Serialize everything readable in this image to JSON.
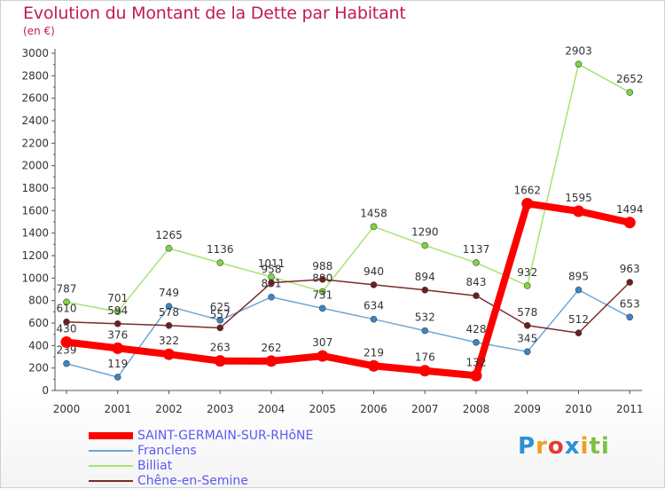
{
  "title": "Evolution du Montant de la Dette par Habitant",
  "subtitle": "(en €)",
  "logo": "Proxiti",
  "chart_data": {
    "type": "line",
    "title": "Evolution du Montant de la Dette par Habitant",
    "subtitle": "(en €)",
    "xlabel": "",
    "ylabel": "",
    "categories": [
      "2000",
      "2001",
      "2002",
      "2003",
      "2004",
      "2005",
      "2006",
      "2007",
      "2008",
      "2009",
      "2010",
      "2011"
    ],
    "yticks": [
      0,
      200,
      400,
      600,
      800,
      1000,
      1200,
      1400,
      1600,
      1800,
      2000,
      2200,
      2400,
      2600,
      2800,
      3000
    ],
    "ylim": [
      0,
      3000
    ],
    "grid": false,
    "legend_position": "bottom-left",
    "series": [
      {
        "name": "SAINT-GERMAIN-SUR-RHôNE",
        "color": "#ff0000",
        "marker": "#ff0000",
        "values": [
          430,
          376,
          322,
          263,
          262,
          307,
          219,
          176,
          132,
          1662,
          1595,
          1494
        ]
      },
      {
        "name": "Franclens",
        "color": "#6fa7d6",
        "marker": "#3a86c8",
        "values": [
          239,
          119,
          749,
          625,
          831,
          731,
          634,
          532,
          428,
          345,
          895,
          653
        ]
      },
      {
        "name": "Billiat",
        "color": "#a6e472",
        "marker": "#7ed640",
        "values": [
          787,
          701,
          1265,
          1136,
          1011,
          880,
          1458,
          1290,
          1137,
          932,
          2903,
          2652
        ]
      },
      {
        "name": "Chêne-en-Semine",
        "color": "#7b2a2a",
        "marker": "#6d1f1f",
        "values": [
          610,
          594,
          578,
          557,
          958,
          988,
          940,
          894,
          843,
          578,
          512,
          963
        ]
      }
    ]
  }
}
